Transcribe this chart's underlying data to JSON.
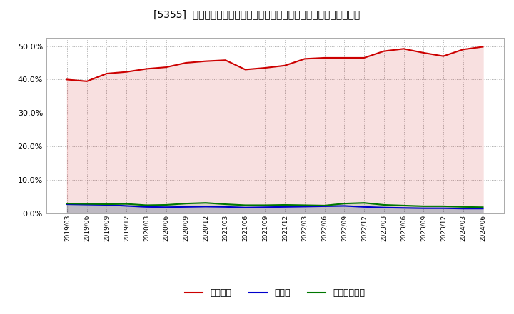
{
  "title": "[5355]  自己資本、のれん、繰延税金資産の総資産に対する比率の推移",
  "x_labels": [
    "2019/03",
    "2019/06",
    "2019/09",
    "2019/12",
    "2020/03",
    "2020/06",
    "2020/09",
    "2020/12",
    "2021/03",
    "2021/06",
    "2021/09",
    "2021/12",
    "2022/03",
    "2022/06",
    "2022/09",
    "2022/12",
    "2023/03",
    "2023/06",
    "2023/09",
    "2023/12",
    "2024/03",
    "2024/06"
  ],
  "jikoshihon": [
    40.0,
    39.5,
    41.8,
    42.3,
    43.2,
    43.7,
    45.0,
    45.5,
    45.8,
    43.0,
    43.5,
    44.2,
    46.2,
    46.5,
    46.5,
    46.5,
    48.5,
    49.2,
    48.0,
    47.0,
    49.0,
    49.8
  ],
  "noren": [
    2.8,
    2.7,
    2.6,
    2.3,
    2.0,
    1.9,
    2.0,
    2.1,
    2.0,
    1.8,
    1.9,
    2.0,
    2.1,
    2.2,
    2.3,
    2.0,
    1.8,
    1.7,
    1.6,
    1.6,
    1.5,
    1.5
  ],
  "kurinobezeikinsisan": [
    3.0,
    2.9,
    2.8,
    2.9,
    2.5,
    2.6,
    3.0,
    3.2,
    2.8,
    2.5,
    2.5,
    2.6,
    2.5,
    2.4,
    3.0,
    3.2,
    2.6,
    2.4,
    2.2,
    2.2,
    2.0,
    1.9
  ],
  "jikoshihon_color": "#cc0000",
  "noren_color": "#0000cc",
  "kurinobezeikinsisan_color": "#007700",
  "fill_alpha": 0.12,
  "ylim": [
    0.0,
    52.5
  ],
  "yticks": [
    0.0,
    10.0,
    20.0,
    30.0,
    40.0,
    50.0
  ],
  "bg_color": "#ffffff",
  "plot_bg_color": "#ffffff",
  "grid_color": "#999999",
  "legend_labels": [
    "自己資本",
    "のれん",
    "繰延税金資産"
  ]
}
